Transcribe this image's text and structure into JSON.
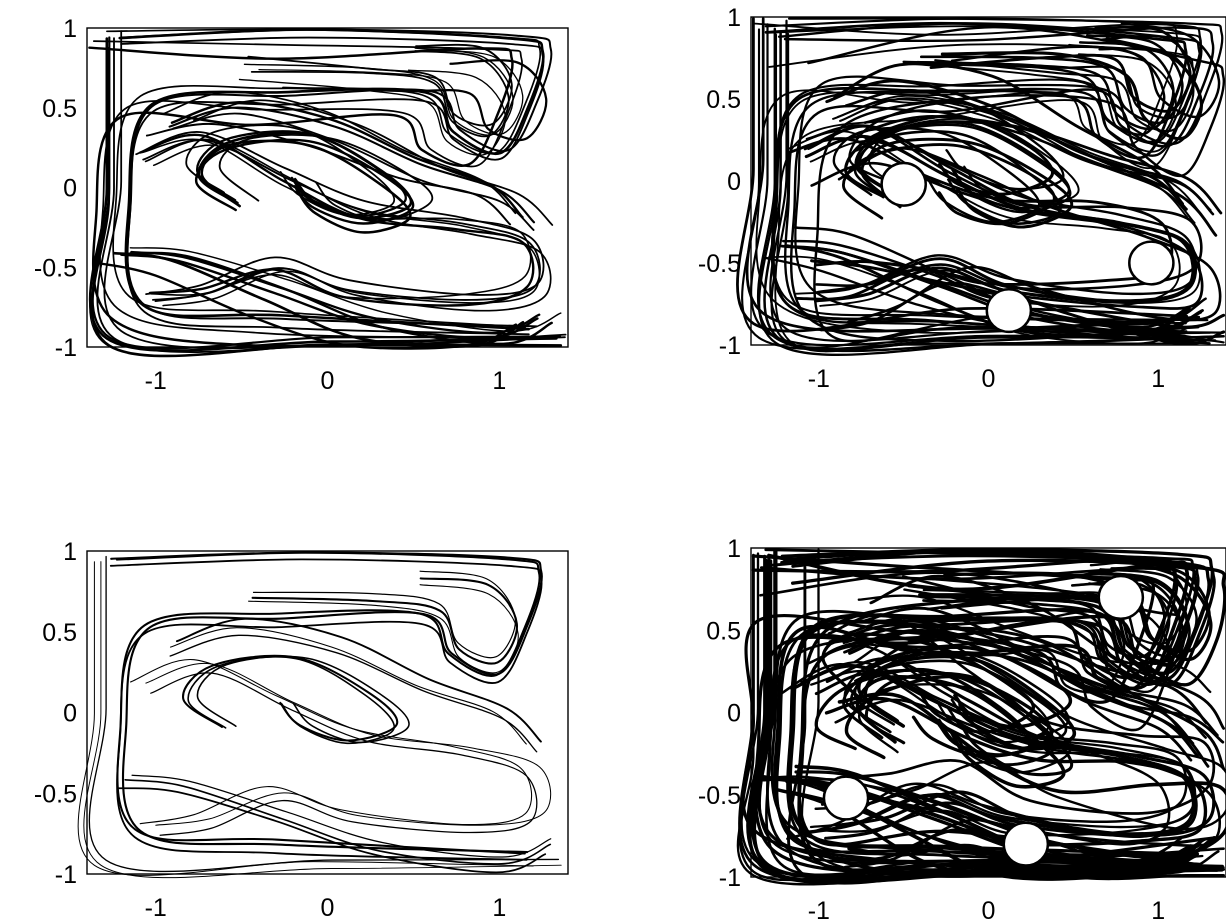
{
  "chart_data": [
    {
      "type": "line",
      "panel": "top-left",
      "xlim": [
        -1.4,
        1.4
      ],
      "ylim": [
        -1,
        1
      ],
      "xticks": [
        "-1",
        "0",
        "1"
      ],
      "yticks": [
        "1",
        "0.5",
        "0",
        "-0.5",
        "-1"
      ],
      "rods": [],
      "density": 1
    },
    {
      "type": "line",
      "panel": "top-right",
      "xlim": [
        -1.4,
        1.4
      ],
      "ylim": [
        -1,
        1
      ],
      "xticks": [
        "-1",
        "0",
        "1"
      ],
      "yticks": [
        "1",
        "0.5",
        "0",
        "-0.5",
        "-1"
      ],
      "rods": [
        {
          "x": -0.5,
          "y": -0.02,
          "r": 0.13
        },
        {
          "x": 0.12,
          "y": -0.79,
          "r": 0.13
        },
        {
          "x": 0.96,
          "y": -0.5,
          "r": 0.13
        }
      ],
      "density": 2
    },
    {
      "type": "line",
      "panel": "bottom-left",
      "xlim": [
        -1.4,
        1.4
      ],
      "ylim": [
        -1,
        1
      ],
      "xticks": [
        "-1",
        "0",
        "1"
      ],
      "yticks": [
        "1",
        "0.5",
        "0",
        "-0.5",
        "-1"
      ],
      "rods": [],
      "density": 0
    },
    {
      "type": "line",
      "panel": "bottom-right",
      "xlim": [
        -1.4,
        1.4
      ],
      "ylim": [
        -1,
        1
      ],
      "xticks": [
        "-1",
        "0",
        "1"
      ],
      "yticks": [
        "1",
        "0.5",
        "0",
        "-0.5",
        "-1"
      ],
      "rods": [
        {
          "x": 0.78,
          "y": 0.7,
          "r": 0.13
        },
        {
          "x": -0.84,
          "y": -0.52,
          "r": 0.13
        },
        {
          "x": 0.22,
          "y": -0.8,
          "r": 0.13
        }
      ],
      "density": 3
    }
  ]
}
